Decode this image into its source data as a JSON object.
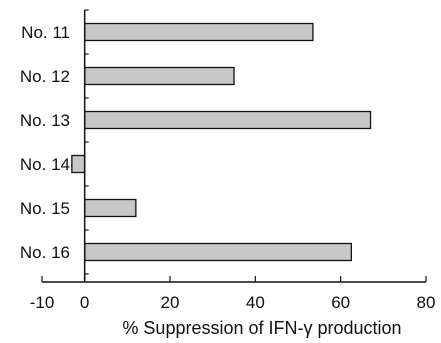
{
  "chart_data": {
    "type": "bar",
    "orientation": "horizontal",
    "categories": [
      "No. 11",
      "No. 12",
      "No. 13",
      "No. 14",
      "No. 15",
      "No. 16"
    ],
    "values": [
      53.5,
      35,
      67,
      -3,
      12,
      62.5
    ],
    "xlabel": "% Suppression of IFN-γ production",
    "ylabel": "",
    "xlim": [
      -10,
      80
    ],
    "xticks": [
      -10,
      0,
      20,
      40,
      60,
      80
    ],
    "xtick_labels": [
      "-10",
      "0",
      "20",
      "40",
      "60",
      "80"
    ],
    "grid": false,
    "bar_color": "#c8c8c8",
    "bar_edge_color": "#111111"
  }
}
